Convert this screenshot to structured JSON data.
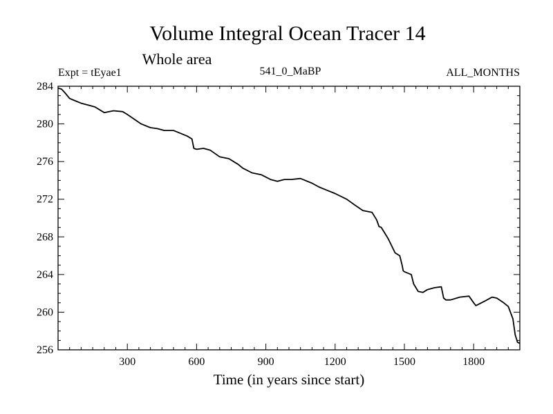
{
  "chart_data": {
    "type": "line",
    "title": "Volume Integral Ocean Tracer 14",
    "subtitle": "Whole area",
    "annotations": {
      "left": "Expt = tEyae1",
      "center": "541_0_MaBP",
      "right": "ALL_MONTHS"
    },
    "xlabel": "Time (in years since start)",
    "ylabel": "",
    "xlim": [
      0,
      2000
    ],
    "ylim": [
      256,
      284
    ],
    "x_ticks": [
      300,
      600,
      900,
      1200,
      1500,
      1800
    ],
    "x_tick_labels": [
      "300",
      "600",
      "900",
      "1200",
      "1500",
      "1800"
    ],
    "y_ticks": [
      256,
      260,
      264,
      268,
      272,
      276,
      280,
      284
    ],
    "y_tick_labels": [
      "256",
      "260",
      "264",
      "268",
      "272",
      "276",
      "280",
      "284"
    ],
    "grid": false,
    "series": [
      {
        "name": "Volume Integral Ocean Tracer 14",
        "color": "#000000",
        "x": [
          0,
          15,
          30,
          50,
          70,
          100,
          130,
          160,
          200,
          240,
          280,
          300,
          330,
          360,
          400,
          430,
          460,
          500,
          530,
          560,
          580,
          588,
          600,
          630,
          660,
          700,
          740,
          780,
          800,
          840,
          880,
          920,
          950,
          980,
          1010,
          1050,
          1100,
          1130,
          1160,
          1200,
          1250,
          1290,
          1320,
          1360,
          1380,
          1390,
          1400,
          1430,
          1460,
          1480,
          1490,
          1495,
          1500,
          1530,
          1540,
          1560,
          1580,
          1600,
          1630,
          1660,
          1670,
          1680,
          1700,
          1740,
          1780,
          1800,
          1810,
          1850,
          1880,
          1900,
          1930,
          1950,
          1970,
          1980,
          1990,
          2000
        ],
        "y": [
          283.8,
          283.7,
          283.3,
          282.7,
          282.5,
          282.2,
          282.0,
          281.8,
          281.2,
          281.4,
          281.3,
          281.0,
          280.5,
          280.0,
          279.6,
          279.5,
          279.3,
          279.3,
          279.0,
          278.7,
          278.4,
          277.4,
          277.3,
          277.4,
          277.2,
          276.5,
          276.3,
          275.7,
          275.3,
          274.8,
          274.6,
          274.1,
          273.9,
          274.1,
          274.1,
          274.2,
          273.7,
          273.3,
          273.0,
          272.6,
          272.0,
          271.3,
          270.8,
          270.6,
          269.8,
          269.1,
          269.0,
          267.8,
          266.3,
          266.0,
          265.0,
          264.4,
          264.3,
          264.0,
          263.0,
          262.2,
          262.1,
          262.4,
          262.6,
          262.7,
          261.5,
          261.3,
          261.3,
          261.6,
          261.7,
          261.0,
          260.7,
          261.2,
          261.6,
          261.5,
          261.0,
          260.6,
          259.3,
          257.6,
          256.8,
          256.7
        ]
      }
    ]
  }
}
